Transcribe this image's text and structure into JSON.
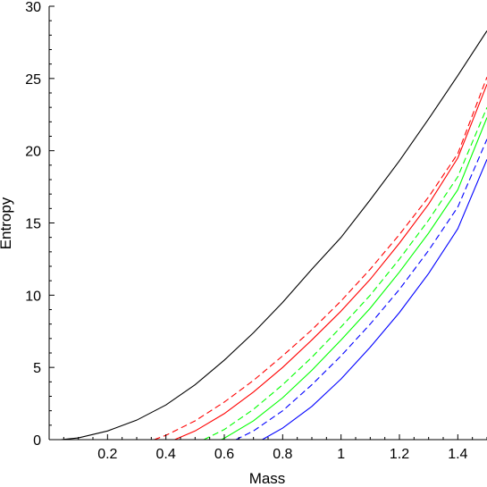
{
  "chart_data": {
    "type": "line",
    "title": "",
    "xlabel": "Mass",
    "ylabel": "Entropy",
    "xlim": [
      0,
      1.5
    ],
    "ylim": [
      0,
      30
    ],
    "x_ticks": [
      0.2,
      0.4,
      0.6,
      0.8,
      1,
      1.2,
      1.4
    ],
    "x_tick_labels": [
      "0.2",
      "0.4",
      "0.6",
      "0.8",
      "1",
      "1.2",
      "1.4"
    ],
    "y_ticks": [
      0,
      5,
      10,
      15,
      20,
      25,
      30
    ],
    "y_tick_labels": [
      "0",
      "5",
      "10",
      "15",
      "20",
      "25",
      "30"
    ],
    "grid": false,
    "legend": "none",
    "series": [
      {
        "color": "#000000",
        "dash": "solid",
        "x": [
          0.04,
          0.1,
          0.2,
          0.3,
          0.4,
          0.5,
          0.6,
          0.7,
          0.8,
          0.9,
          1.0,
          1.1,
          1.2,
          1.3,
          1.4,
          1.5
        ],
        "y": [
          0,
          0.12,
          0.6,
          1.35,
          2.4,
          3.8,
          5.5,
          7.4,
          9.5,
          11.8,
          14.0,
          16.6,
          19.3,
          22.2,
          25.2,
          28.3
        ]
      },
      {
        "color": "#ff0000",
        "dash": "dashed",
        "x": [
          0.36,
          0.4,
          0.5,
          0.6,
          0.7,
          0.8,
          0.9,
          1.0,
          1.1,
          1.2,
          1.3,
          1.4,
          1.5
        ],
        "y": [
          0,
          0.3,
          1.3,
          2.6,
          4.1,
          5.8,
          7.6,
          9.6,
          11.8,
          14.2,
          16.8,
          19.8,
          25.1
        ]
      },
      {
        "color": "#ff0000",
        "dash": "solid",
        "x": [
          0.43,
          0.5,
          0.6,
          0.7,
          0.8,
          0.9,
          1.0,
          1.1,
          1.2,
          1.3,
          1.4,
          1.5
        ],
        "y": [
          0,
          0.6,
          1.8,
          3.3,
          5.0,
          6.9,
          8.9,
          11.1,
          13.6,
          16.3,
          19.5,
          24.6
        ]
      },
      {
        "color": "#00ff00",
        "dash": "dashed",
        "x": [
          0.53,
          0.6,
          0.7,
          0.8,
          0.9,
          1.0,
          1.1,
          1.2,
          1.3,
          1.4,
          1.5
        ],
        "y": [
          0,
          0.7,
          2.1,
          3.8,
          5.7,
          7.8,
          10.0,
          12.5,
          15.2,
          18.2,
          23.0
        ]
      },
      {
        "color": "#00ff00",
        "dash": "solid",
        "x": [
          0.59,
          0.6,
          0.7,
          0.8,
          0.9,
          1.0,
          1.1,
          1.2,
          1.3,
          1.4,
          1.5
        ],
        "y": [
          0,
          0.1,
          1.3,
          2.9,
          4.8,
          6.9,
          9.1,
          11.6,
          14.3,
          17.3,
          22.3
        ]
      },
      {
        "color": "#0000ff",
        "dash": "dashed",
        "x": [
          0.64,
          0.7,
          0.8,
          0.9,
          1.0,
          1.1,
          1.2,
          1.3,
          1.4,
          1.5
        ],
        "y": [
          0,
          0.6,
          2.0,
          3.8,
          5.8,
          8.0,
          10.4,
          13.1,
          16.1,
          20.8
        ]
      },
      {
        "color": "#0000ff",
        "dash": "solid",
        "x": [
          0.73,
          0.8,
          0.9,
          1.0,
          1.1,
          1.2,
          1.3,
          1.4,
          1.5
        ],
        "y": [
          0,
          0.8,
          2.3,
          4.2,
          6.4,
          8.8,
          11.5,
          14.6,
          19.4
        ]
      }
    ]
  }
}
